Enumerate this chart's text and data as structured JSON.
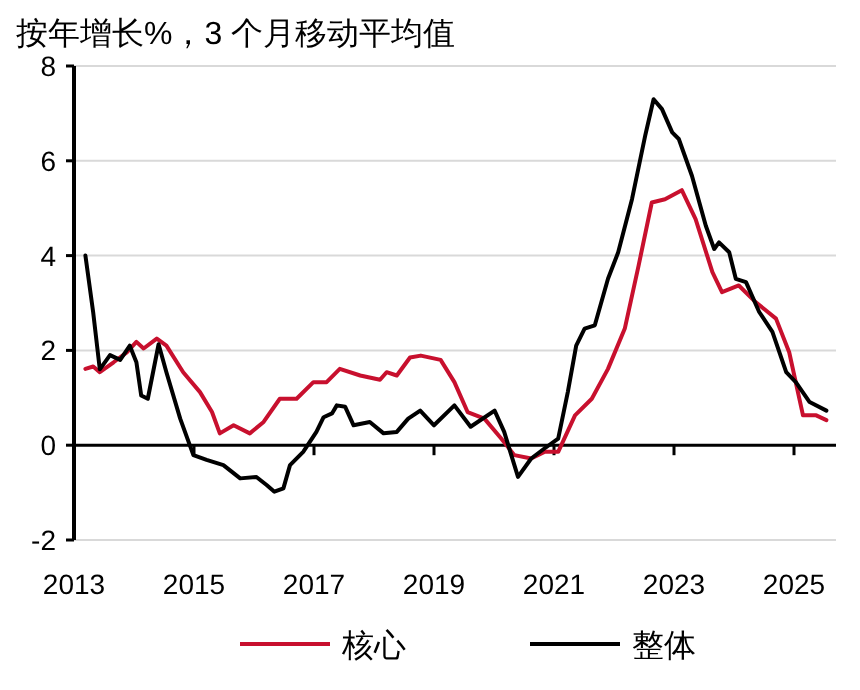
{
  "chart_data": {
    "type": "line",
    "title": "按年增长%，3 个月移动平均值",
    "xlim": [
      2013,
      2025.7
    ],
    "xticks": [
      2013,
      2015,
      2017,
      2019,
      2021,
      2023,
      2025
    ],
    "ylim": [
      -2,
      8
    ],
    "yticks": [
      -2,
      0,
      2,
      4,
      6,
      8
    ],
    "grid": "y",
    "legend": "bottom",
    "line_style": "solid",
    "ref_lines": [
      {
        "axis": "y",
        "value": 0,
        "color": "#000000"
      }
    ],
    "series": [
      {
        "name": "核心",
        "color": "#c8102e",
        "x": [
          2013.19,
          2013.32,
          2013.43,
          2013.66,
          2013.88,
          2014.04,
          2014.16,
          2014.38,
          2014.54,
          2014.82,
          2015.1,
          2015.3,
          2015.43,
          2015.66,
          2015.93,
          2016.16,
          2016.43,
          2016.71,
          2016.99,
          2017.21,
          2017.43,
          2017.77,
          2018.1,
          2018.21,
          2018.38,
          2018.6,
          2018.78,
          2019.11,
          2019.34,
          2019.56,
          2019.84,
          2020.12,
          2020.34,
          2020.62,
          2020.84,
          2021.07,
          2021.35,
          2021.63,
          2021.9,
          2022.18,
          2022.41,
          2022.63,
          2022.85,
          2023.13,
          2023.36,
          2023.64,
          2023.8,
          2024.08,
          2024.36,
          2024.7,
          2024.92,
          2025.15,
          2025.37,
          2025.54
        ],
        "values": [
          1.61,
          1.66,
          1.54,
          1.75,
          1.96,
          2.18,
          2.04,
          2.25,
          2.1,
          1.54,
          1.12,
          0.7,
          0.25,
          0.42,
          0.25,
          0.49,
          0.98,
          0.98,
          1.33,
          1.33,
          1.61,
          1.47,
          1.38,
          1.54,
          1.47,
          1.85,
          1.89,
          1.8,
          1.33,
          0.7,
          0.56,
          0.14,
          -0.21,
          -0.28,
          -0.14,
          -0.14,
          0.63,
          0.98,
          1.61,
          2.46,
          3.79,
          5.12,
          5.19,
          5.38,
          4.77,
          3.65,
          3.23,
          3.37,
          3.02,
          2.67,
          1.96,
          0.63,
          0.63,
          0.53
        ]
      },
      {
        "name": "整体",
        "color": "#000000",
        "x": [
          2013.19,
          2013.32,
          2013.43,
          2013.6,
          2013.77,
          2013.93,
          2014.04,
          2014.12,
          2014.23,
          2014.41,
          2014.54,
          2014.77,
          2014.99,
          2015.21,
          2015.49,
          2015.77,
          2016.04,
          2016.21,
          2016.34,
          2016.49,
          2016.6,
          2016.82,
          2017.04,
          2017.16,
          2017.3,
          2017.38,
          2017.52,
          2017.66,
          2017.93,
          2018.16,
          2018.38,
          2018.57,
          2018.77,
          2019.0,
          2019.34,
          2019.61,
          2020.01,
          2020.17,
          2020.4,
          2020.62,
          2020.84,
          2021.07,
          2021.23,
          2021.37,
          2021.51,
          2021.68,
          2021.9,
          2022.07,
          2022.3,
          2022.52,
          2022.66,
          2022.8,
          2022.97,
          2023.08,
          2023.3,
          2023.53,
          2023.67,
          2023.75,
          2023.92,
          2024.03,
          2024.2,
          2024.42,
          2024.64,
          2024.87,
          2025.03,
          2025.26,
          2025.54
        ],
        "values": [
          4.0,
          2.8,
          1.6,
          1.9,
          1.8,
          2.1,
          1.75,
          1.05,
          0.98,
          2.13,
          1.54,
          0.56,
          -0.21,
          -0.31,
          -0.42,
          -0.7,
          -0.67,
          -0.84,
          -0.98,
          -0.91,
          -0.42,
          -0.14,
          0.28,
          0.59,
          0.67,
          0.84,
          0.81,
          0.42,
          0.49,
          0.25,
          0.28,
          0.56,
          0.73,
          0.42,
          0.84,
          0.39,
          0.73,
          0.28,
          -0.67,
          -0.28,
          -0.07,
          0.14,
          1.12,
          2.1,
          2.46,
          2.53,
          3.51,
          4.07,
          5.19,
          6.53,
          7.3,
          7.09,
          6.6,
          6.46,
          5.68,
          4.63,
          4.14,
          4.28,
          4.07,
          3.51,
          3.44,
          2.81,
          2.39,
          1.54,
          1.33,
          0.91,
          0.73
        ]
      }
    ]
  }
}
